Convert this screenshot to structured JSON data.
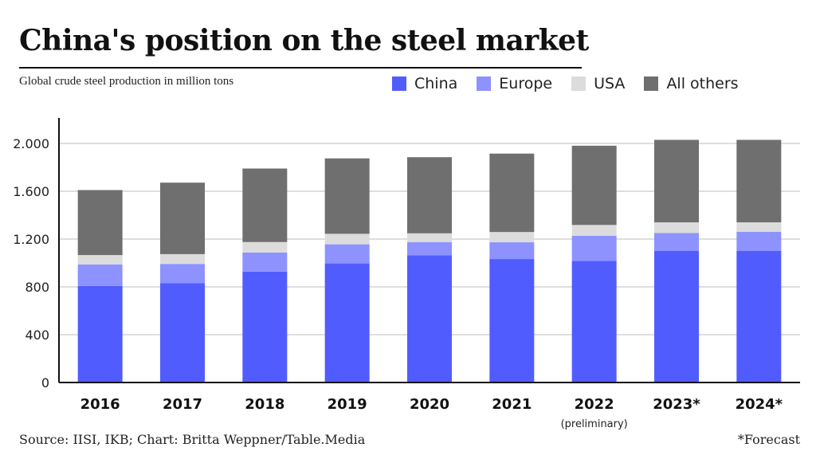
{
  "title": "China's position on the steel market",
  "subtitle": "Global crude steel production in million tons",
  "source": "Source: IISI, IKB; Chart: Britta Weppner/Table.Media",
  "footnote": "*Forecast",
  "colors": {
    "China": "#515cff",
    "Europe": "#8d92ff",
    "USA": "#dcdcdc",
    "All others": "#6f6f6f"
  },
  "legend": [
    "China",
    "Europe",
    "USA",
    "All others"
  ],
  "chart_data": {
    "type": "bar",
    "stacked": true,
    "categories": [
      "2016",
      "2017",
      "2018",
      "2019",
      "2020",
      "2021",
      "2022",
      "2023*",
      "2024*"
    ],
    "category_notes": [
      "",
      "",
      "",
      "",
      "",
      "",
      "(preliminary)",
      "",
      ""
    ],
    "series": [
      {
        "name": "China",
        "values": [
          808,
          832,
          928,
          996,
          1065,
          1033,
          1018,
          1100,
          1100
        ]
      },
      {
        "name": "Europe",
        "values": [
          180,
          160,
          160,
          160,
          110,
          140,
          210,
          150,
          160
        ]
      },
      {
        "name": "USA",
        "values": [
          78,
          82,
          87,
          88,
          73,
          86,
          90,
          90,
          80
        ]
      },
      {
        "name": "All others",
        "values": [
          544,
          598,
          615,
          631,
          637,
          656,
          663,
          690,
          690
        ]
      }
    ],
    "ylim": [
      0,
      2200
    ],
    "yticks": [
      0,
      400,
      800,
      1200,
      1600,
      2000
    ],
    "ytick_labels": [
      "0",
      "400",
      "800",
      "1.200",
      "1.600",
      "2.000"
    ],
    "grid": true,
    "legend_position": "top-right"
  }
}
